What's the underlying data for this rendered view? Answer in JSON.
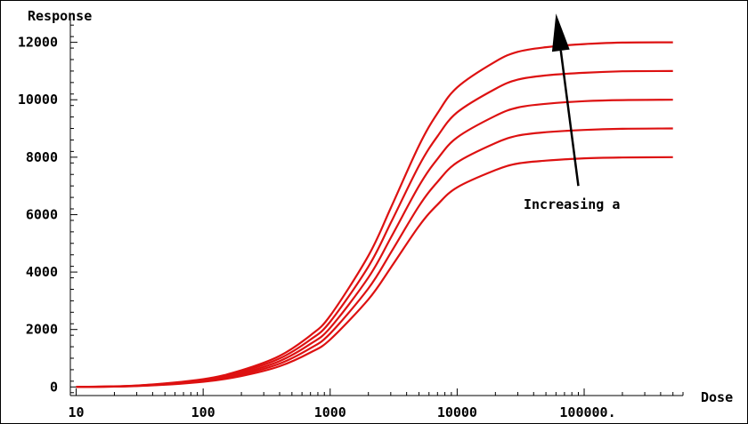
{
  "chart_data": {
    "type": "line",
    "title": "",
    "xlabel": "Dose",
    "ylabel": "Response",
    "x_scale": "log",
    "xlim": [
      9,
      600000
    ],
    "ylim": [
      -300,
      12700
    ],
    "x_ticks": [
      {
        "value": 10,
        "label": "10"
      },
      {
        "value": 100,
        "label": "100"
      },
      {
        "value": 1000,
        "label": "1000"
      },
      {
        "value": 10000,
        "label": "10000"
      },
      {
        "value": 100000,
        "label": "100000."
      }
    ],
    "y_ticks": [
      {
        "value": 0,
        "label": "0"
      },
      {
        "value": 2000,
        "label": "2000"
      },
      {
        "value": 4000,
        "label": "4000"
      },
      {
        "value": 6000,
        "label": "6000"
      },
      {
        "value": 8000,
        "label": "8000"
      },
      {
        "value": 10000,
        "label": "10000"
      },
      {
        "value": 12000,
        "label": "12000"
      }
    ],
    "grid": false,
    "line_color": "#dd1111",
    "series": [
      {
        "x": [
          10,
          30,
          100,
          200,
          400,
          700,
          1000,
          2000,
          3000,
          5000,
          7000,
          10000,
          20000,
          30000,
          50000,
          100000,
          200000,
          500000
        ],
        "values": [
          0,
          30,
          180,
          380,
          720,
          1200,
          1650,
          3050,
          4150,
          5600,
          6350,
          6950,
          7550,
          7780,
          7880,
          7960,
          7990,
          8000
        ]
      },
      {
        "x": [
          10,
          30,
          100,
          200,
          400,
          700,
          1000,
          2000,
          3000,
          5000,
          7000,
          10000,
          20000,
          30000,
          50000,
          100000,
          200000,
          500000
        ],
        "values": [
          0,
          35,
          200,
          430,
          810,
          1350,
          1860,
          3430,
          4670,
          6300,
          7140,
          7820,
          8490,
          8750,
          8870,
          8950,
          8990,
          9000
        ]
      },
      {
        "x": [
          10,
          30,
          100,
          200,
          400,
          700,
          1000,
          2000,
          3000,
          5000,
          7000,
          10000,
          20000,
          30000,
          50000,
          100000,
          200000,
          500000
        ],
        "values": [
          0,
          40,
          225,
          480,
          900,
          1500,
          2060,
          3810,
          5190,
          7000,
          7940,
          8690,
          9440,
          9730,
          9860,
          9950,
          9990,
          10000
        ]
      },
      {
        "x": [
          10,
          30,
          100,
          200,
          400,
          700,
          1000,
          2000,
          3000,
          5000,
          7000,
          10000,
          20000,
          30000,
          50000,
          100000,
          200000,
          500000
        ],
        "values": [
          0,
          45,
          245,
          530,
          990,
          1650,
          2270,
          4190,
          5710,
          7700,
          8730,
          9560,
          10380,
          10700,
          10850,
          10940,
          10990,
          11000
        ]
      },
      {
        "x": [
          10,
          30,
          100,
          200,
          400,
          700,
          1000,
          2000,
          3000,
          5000,
          7000,
          10000,
          20000,
          30000,
          50000,
          100000,
          200000,
          500000
        ],
        "values": [
          0,
          50,
          270,
          580,
          1080,
          1800,
          2480,
          4570,
          6230,
          8400,
          9530,
          10430,
          11330,
          11670,
          11830,
          11940,
          11990,
          12000
        ]
      }
    ],
    "annotations": [
      {
        "text": "Increasing a",
        "x": 80000,
        "y": 6200
      }
    ],
    "arrow": {
      "from": [
        90000,
        7000
      ],
      "to": [
        60000,
        13000
      ]
    }
  }
}
